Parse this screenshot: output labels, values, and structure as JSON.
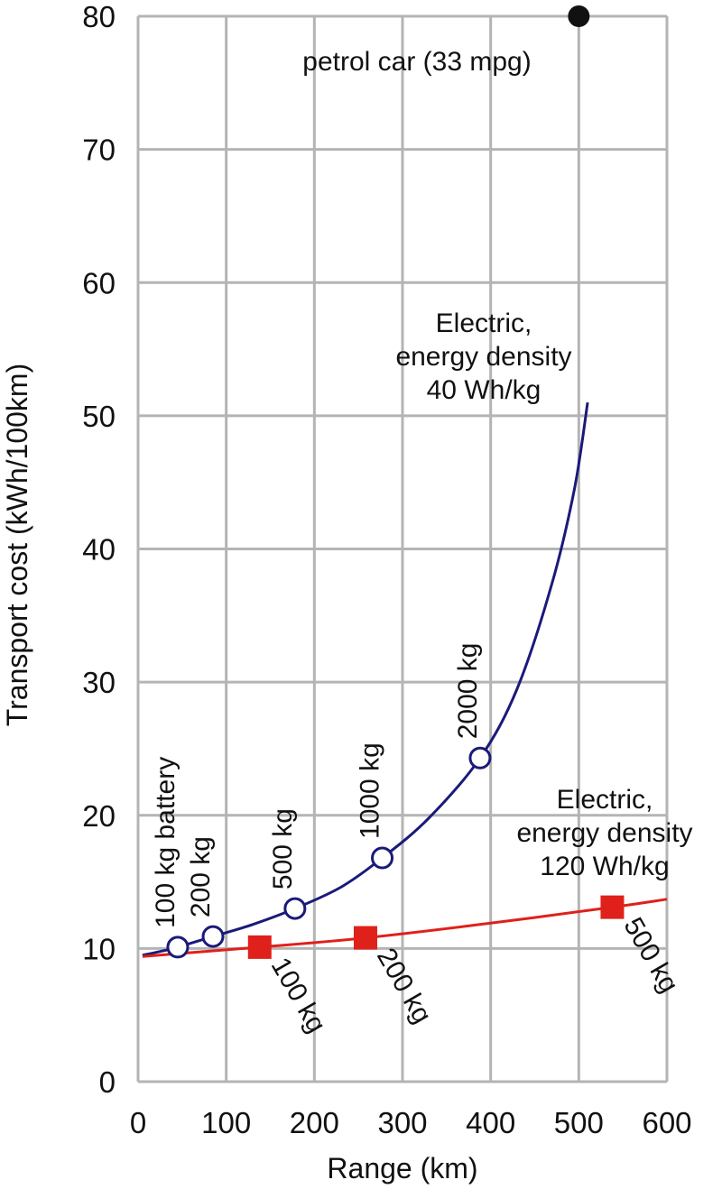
{
  "chart_data": {
    "type": "line",
    "xlabel": "Range (km)",
    "ylabel": "Transport cost (kWh/100km)",
    "xlim": [
      0,
      600
    ],
    "ylim": [
      0,
      80
    ],
    "x_ticks": [
      "0",
      "100",
      "200",
      "300",
      "400",
      "500",
      "600"
    ],
    "y_ticks": [
      "0",
      "10",
      "20",
      "30",
      "40",
      "50",
      "60",
      "70",
      "80"
    ],
    "grid": true,
    "colors": {
      "grid": "#b4b4b4",
      "series_40": "#1a1a7a",
      "series_120": "#e0201a",
      "petrol": "#111111"
    },
    "series": [
      {
        "name": "Electric, energy density 40 Wh/kg",
        "label_lines": [
          "Electric,",
          "energy density",
          "40 Wh/kg"
        ],
        "marker": "open-circle",
        "curve": {
          "x": [
            5,
            20,
            45,
            85,
            130,
            178,
            230,
            277,
            330,
            388,
            430,
            470,
            495,
            510
          ],
          "y": [
            9.5,
            9.7,
            10.1,
            10.9,
            11.8,
            13.0,
            14.6,
            16.8,
            19.8,
            24.3,
            29.5,
            37.5,
            44.5,
            51.0
          ]
        },
        "points": [
          {
            "x": 45,
            "y": 10.1,
            "label": "100 kg battery"
          },
          {
            "x": 85,
            "y": 10.9,
            "label": "200 kg"
          },
          {
            "x": 178,
            "y": 13.0,
            "label": "500 kg"
          },
          {
            "x": 277,
            "y": 16.8,
            "label": "1000 kg"
          },
          {
            "x": 388,
            "y": 24.3,
            "label": "2000 kg"
          }
        ]
      },
      {
        "name": "Electric, energy density 120 Wh/kg",
        "label_lines": [
          "Electric,",
          "energy density",
          "120 Wh/kg"
        ],
        "marker": "filled-square",
        "curve": {
          "x": [
            5,
            138,
            258,
            400,
            538,
            600
          ],
          "y": [
            9.4,
            10.1,
            10.8,
            11.9,
            13.1,
            13.7
          ]
        },
        "points": [
          {
            "x": 138,
            "y": 10.1,
            "label": "100 kg"
          },
          {
            "x": 258,
            "y": 10.8,
            "label": "200 kg"
          },
          {
            "x": 538,
            "y": 13.1,
            "label": "500 kg"
          }
        ]
      }
    ],
    "petrol": {
      "x": 500,
      "y": 80,
      "label": "petrol car (33 mpg)"
    }
  }
}
